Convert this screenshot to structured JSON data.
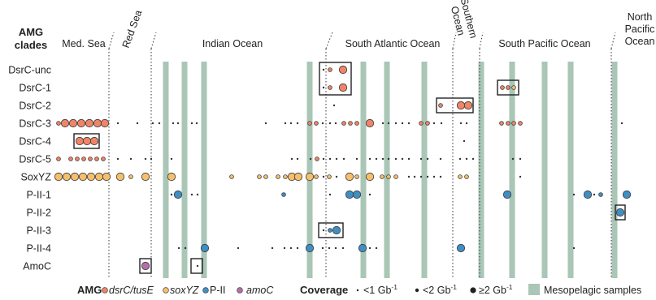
{
  "chart_data": {
    "type": "scatter",
    "ylabel": [
      "AMG",
      "clades"
    ],
    "regions": [
      {
        "name": "Med. Sea",
        "rotated": false
      },
      {
        "name": "Red Sea",
        "rotated": true
      },
      {
        "name": "Indian Ocean",
        "rotated": false
      },
      {
        "name": "South Atlantic Ocean",
        "rotated": false
      },
      {
        "name": "Southern Ocean",
        "rotated": true,
        "lines": [
          "Southern",
          "Ocean"
        ]
      },
      {
        "name": "South Pacific Ocean",
        "rotated": false
      },
      {
        "name": "North Pacific Ocean",
        "rotated": false,
        "lines": [
          "North",
          "Pacific",
          "Ocean"
        ]
      }
    ],
    "categories": [
      "DsrC-unc",
      "DsrC-1",
      "DsrC-2",
      "DsrC-3",
      "DsrC-4",
      "DsrC-5",
      "SoxYZ",
      "P-II-1",
      "P-II-2",
      "P-II-3",
      "P-II-4",
      "AmoC"
    ],
    "amg_groups": [
      {
        "name": "dsrC/tusE",
        "color": "#f08466"
      },
      {
        "name": "soxYZ",
        "color": "#f5bf6c"
      },
      {
        "name": "P-II",
        "color": "#3f8fc4"
      },
      {
        "name": "amoC",
        "color": "#b56fa8"
      }
    ],
    "coverage_classes": [
      {
        "label": "<1 Gb",
        "sup": "-1",
        "size": 1
      },
      {
        "label": "<2 Gb",
        "sup": "-1",
        "size": 2
      },
      {
        "label": "≥2 Gb",
        "sup": "-1",
        "size": 3
      }
    ],
    "mesopelagic_label": "Mesopelagic samples",
    "legend": {
      "amg_title": "AMG",
      "coverage_title": "Coverage"
    },
    "region_boundaries_x": [
      134,
      186,
      401,
      557,
      590,
      752
    ],
    "mesopelagic_x": [
      204,
      227,
      251,
      381,
      447,
      476,
      522,
      592,
      630,
      670,
      702,
      756
    ],
    "points": [
      {
        "row": 0,
        "x": 398,
        "g": 0,
        "s": 1
      },
      {
        "row": 0,
        "x": 406,
        "g": 0,
        "s": 2
      },
      {
        "row": 0,
        "x": 422,
        "g": 0,
        "s": 3
      },
      {
        "row": 1,
        "x": 398,
        "g": 0,
        "s": 1
      },
      {
        "row": 1,
        "x": 406,
        "g": 0,
        "s": 2
      },
      {
        "row": 1,
        "x": 422,
        "g": 0,
        "s": 3
      },
      {
        "row": 1,
        "x": 618,
        "g": 0,
        "s": 2
      },
      {
        "row": 1,
        "x": 625,
        "g": 0,
        "s": 2
      },
      {
        "row": 1,
        "x": 632,
        "g": 1,
        "s": 2
      },
      {
        "row": 2,
        "x": 411,
        "g": 0,
        "s": 1
      },
      {
        "row": 2,
        "x": 542,
        "g": 0,
        "s": 2
      },
      {
        "row": 2,
        "x": 567,
        "g": 0,
        "s": 3
      },
      {
        "row": 2,
        "x": 576,
        "g": 0,
        "s": 3
      },
      {
        "row": 3,
        "x": 72,
        "g": 0,
        "s": 2
      },
      {
        "row": 3,
        "x": 80,
        "g": 0,
        "s": 3
      },
      {
        "row": 3,
        "x": 90,
        "g": 0,
        "s": 3
      },
      {
        "row": 3,
        "x": 100,
        "g": 0,
        "s": 3
      },
      {
        "row": 3,
        "x": 110,
        "g": 0,
        "s": 3
      },
      {
        "row": 3,
        "x": 120,
        "g": 0,
        "s": 3
      },
      {
        "row": 3,
        "x": 129,
        "g": 0,
        "s": 3
      },
      {
        "row": 3,
        "x": 145,
        "g": 0,
        "s": 1
      },
      {
        "row": 3,
        "x": 169,
        "g": 0,
        "s": 1
      },
      {
        "row": 3,
        "x": 188,
        "g": 0,
        "s": 1
      },
      {
        "row": 3,
        "x": 196,
        "g": 0,
        "s": 1
      },
      {
        "row": 3,
        "x": 213,
        "g": 0,
        "s": 1
      },
      {
        "row": 3,
        "x": 219,
        "g": 0,
        "s": 1
      },
      {
        "row": 3,
        "x": 236,
        "g": 0,
        "s": 1
      },
      {
        "row": 3,
        "x": 242,
        "g": 0,
        "s": 1
      },
      {
        "row": 3,
        "x": 327,
        "g": 0,
        "s": 1
      },
      {
        "row": 3,
        "x": 351,
        "g": 0,
        "s": 1
      },
      {
        "row": 3,
        "x": 358,
        "g": 0,
        "s": 1
      },
      {
        "row": 3,
        "x": 366,
        "g": 0,
        "s": 1
      },
      {
        "row": 3,
        "x": 381,
        "g": 0,
        "s": 2
      },
      {
        "row": 3,
        "x": 389,
        "g": 0,
        "s": 2
      },
      {
        "row": 3,
        "x": 397,
        "g": 0,
        "s": 1
      },
      {
        "row": 3,
        "x": 406,
        "g": 0,
        "s": 1
      },
      {
        "row": 3,
        "x": 413,
        "g": 0,
        "s": 1
      },
      {
        "row": 3,
        "x": 423,
        "g": 0,
        "s": 2
      },
      {
        "row": 3,
        "x": 431,
        "g": 0,
        "s": 2
      },
      {
        "row": 3,
        "x": 439,
        "g": 0,
        "s": 2
      },
      {
        "row": 3,
        "x": 455,
        "g": 0,
        "s": 3
      },
      {
        "row": 3,
        "x": 471,
        "g": 0,
        "s": 1
      },
      {
        "row": 3,
        "x": 478,
        "g": 0,
        "s": 1
      },
      {
        "row": 3,
        "x": 487,
        "g": 0,
        "s": 1
      },
      {
        "row": 3,
        "x": 495,
        "g": 0,
        "s": 1
      },
      {
        "row": 3,
        "x": 503,
        "g": 0,
        "s": 1
      },
      {
        "row": 3,
        "x": 518,
        "g": 0,
        "s": 2
      },
      {
        "row": 3,
        "x": 526,
        "g": 0,
        "s": 2
      },
      {
        "row": 3,
        "x": 534,
        "g": 0,
        "s": 1
      },
      {
        "row": 3,
        "x": 543,
        "g": 0,
        "s": 1
      },
      {
        "row": 3,
        "x": 567,
        "g": 0,
        "s": 1
      },
      {
        "row": 3,
        "x": 574,
        "g": 0,
        "s": 1
      },
      {
        "row": 3,
        "x": 617,
        "g": 0,
        "s": 2
      },
      {
        "row": 3,
        "x": 625,
        "g": 0,
        "s": 2
      },
      {
        "row": 3,
        "x": 632,
        "g": 0,
        "s": 2
      },
      {
        "row": 3,
        "x": 640,
        "g": 0,
        "s": 2
      },
      {
        "row": 3,
        "x": 765,
        "g": 0,
        "s": 1
      },
      {
        "row": 4,
        "x": 98,
        "g": 0,
        "s": 3
      },
      {
        "row": 4,
        "x": 107,
        "g": 0,
        "s": 3
      },
      {
        "row": 4,
        "x": 116,
        "g": 0,
        "s": 3
      },
      {
        "row": 4,
        "x": 571,
        "g": 0,
        "s": 1
      },
      {
        "row": 5,
        "x": 72,
        "g": 0,
        "s": 2
      },
      {
        "row": 5,
        "x": 87,
        "g": 0,
        "s": 2
      },
      {
        "row": 5,
        "x": 95,
        "g": 0,
        "s": 2
      },
      {
        "row": 5,
        "x": 103,
        "g": 0,
        "s": 2
      },
      {
        "row": 5,
        "x": 111,
        "g": 0,
        "s": 2
      },
      {
        "row": 5,
        "x": 119,
        "g": 0,
        "s": 2
      },
      {
        "row": 5,
        "x": 127,
        "g": 0,
        "s": 2
      },
      {
        "row": 5,
        "x": 145,
        "g": 0,
        "s": 1
      },
      {
        "row": 5,
        "x": 161,
        "g": 0,
        "s": 1
      },
      {
        "row": 5,
        "x": 179,
        "g": 0,
        "s": 1
      },
      {
        "row": 5,
        "x": 186,
        "g": 0,
        "s": 1
      },
      {
        "row": 5,
        "x": 211,
        "g": 0,
        "s": 1
      },
      {
        "row": 5,
        "x": 359,
        "g": 0,
        "s": 1
      },
      {
        "row": 5,
        "x": 366,
        "g": 0,
        "s": 1
      },
      {
        "row": 5,
        "x": 382,
        "g": 0,
        "s": 1
      },
      {
        "row": 5,
        "x": 390,
        "g": 0,
        "s": 2
      },
      {
        "row": 5,
        "x": 398,
        "g": 0,
        "s": 1
      },
      {
        "row": 5,
        "x": 406,
        "g": 0,
        "s": 1
      },
      {
        "row": 5,
        "x": 414,
        "g": 0,
        "s": 1
      },
      {
        "row": 5,
        "x": 423,
        "g": 0,
        "s": 1
      },
      {
        "row": 5,
        "x": 439,
        "g": 0,
        "s": 1
      },
      {
        "row": 5,
        "x": 455,
        "g": 0,
        "s": 1
      },
      {
        "row": 5,
        "x": 463,
        "g": 0,
        "s": 1
      },
      {
        "row": 5,
        "x": 471,
        "g": 0,
        "s": 1
      },
      {
        "row": 5,
        "x": 478,
        "g": 0,
        "s": 1
      },
      {
        "row": 5,
        "x": 487,
        "g": 0,
        "s": 1
      },
      {
        "row": 5,
        "x": 495,
        "g": 0,
        "s": 1
      },
      {
        "row": 5,
        "x": 503,
        "g": 0,
        "s": 1
      },
      {
        "row": 5,
        "x": 518,
        "g": 0,
        "s": 1
      },
      {
        "row": 5,
        "x": 526,
        "g": 0,
        "s": 1
      },
      {
        "row": 5,
        "x": 542,
        "g": 0,
        "s": 1
      },
      {
        "row": 5,
        "x": 566,
        "g": 0,
        "s": 1
      },
      {
        "row": 5,
        "x": 574,
        "g": 0,
        "s": 1
      },
      {
        "row": 5,
        "x": 582,
        "g": 0,
        "s": 1
      },
      {
        "row": 5,
        "x": 631,
        "g": 0,
        "s": 1
      },
      {
        "row": 5,
        "x": 640,
        "g": 0,
        "s": 1
      },
      {
        "row": 6,
        "x": 72,
        "g": 1,
        "s": 3
      },
      {
        "row": 6,
        "x": 82,
        "g": 1,
        "s": 3
      },
      {
        "row": 6,
        "x": 92,
        "g": 1,
        "s": 3
      },
      {
        "row": 6,
        "x": 102,
        "g": 1,
        "s": 3
      },
      {
        "row": 6,
        "x": 112,
        "g": 1,
        "s": 3
      },
      {
        "row": 6,
        "x": 122,
        "g": 1,
        "s": 3
      },
      {
        "row": 6,
        "x": 131,
        "g": 1,
        "s": 3
      },
      {
        "row": 6,
        "x": 148,
        "g": 1,
        "s": 3
      },
      {
        "row": 6,
        "x": 161,
        "g": 1,
        "s": 2
      },
      {
        "row": 6,
        "x": 179,
        "g": 1,
        "s": 3
      },
      {
        "row": 6,
        "x": 211,
        "g": 1,
        "s": 3
      },
      {
        "row": 6,
        "x": 285,
        "g": 1,
        "s": 2
      },
      {
        "row": 6,
        "x": 319,
        "g": 1,
        "s": 2
      },
      {
        "row": 6,
        "x": 327,
        "g": 1,
        "s": 2
      },
      {
        "row": 6,
        "x": 342,
        "g": 1,
        "s": 2
      },
      {
        "row": 6,
        "x": 351,
        "g": 1,
        "s": 2
      },
      {
        "row": 6,
        "x": 359,
        "g": 1,
        "s": 3
      },
      {
        "row": 6,
        "x": 367,
        "g": 1,
        "s": 3
      },
      {
        "row": 6,
        "x": 381,
        "g": 1,
        "s": 3
      },
      {
        "row": 6,
        "x": 389,
        "g": 1,
        "s": 2
      },
      {
        "row": 6,
        "x": 398,
        "g": 1,
        "s": 1
      },
      {
        "row": 6,
        "x": 405,
        "g": 1,
        "s": 2
      },
      {
        "row": 6,
        "x": 414,
        "g": 1,
        "s": 1
      },
      {
        "row": 6,
        "x": 430,
        "g": 1,
        "s": 3
      },
      {
        "row": 6,
        "x": 439,
        "g": 1,
        "s": 2
      },
      {
        "row": 6,
        "x": 455,
        "g": 1,
        "s": 3
      },
      {
        "row": 6,
        "x": 470,
        "g": 1,
        "s": 2
      },
      {
        "row": 6,
        "x": 478,
        "g": 1,
        "s": 2
      },
      {
        "row": 6,
        "x": 487,
        "g": 1,
        "s": 2
      },
      {
        "row": 6,
        "x": 503,
        "g": 1,
        "s": 1
      },
      {
        "row": 6,
        "x": 510,
        "g": 1,
        "s": 1
      },
      {
        "row": 6,
        "x": 518,
        "g": 1,
        "s": 1
      },
      {
        "row": 6,
        "x": 526,
        "g": 1,
        "s": 1
      },
      {
        "row": 6,
        "x": 534,
        "g": 1,
        "s": 1
      },
      {
        "row": 6,
        "x": 542,
        "g": 1,
        "s": 1
      },
      {
        "row": 6,
        "x": 566,
        "g": 1,
        "s": 2
      },
      {
        "row": 6,
        "x": 574,
        "g": 1,
        "s": 2
      },
      {
        "row": 6,
        "x": 640,
        "g": 1,
        "s": 1
      },
      {
        "row": 7,
        "x": 211,
        "g": 2,
        "s": 1
      },
      {
        "row": 7,
        "x": 219,
        "g": 2,
        "s": 3
      },
      {
        "row": 7,
        "x": 236,
        "g": 2,
        "s": 1
      },
      {
        "row": 7,
        "x": 243,
        "g": 2,
        "s": 1
      },
      {
        "row": 7,
        "x": 349,
        "g": 2,
        "s": 2
      },
      {
        "row": 7,
        "x": 406,
        "g": 2,
        "s": 1
      },
      {
        "row": 7,
        "x": 430,
        "g": 2,
        "s": 3
      },
      {
        "row": 7,
        "x": 439,
        "g": 2,
        "s": 3
      },
      {
        "row": 7,
        "x": 455,
        "g": 2,
        "s": 1
      },
      {
        "row": 7,
        "x": 624,
        "g": 2,
        "s": 3
      },
      {
        "row": 7,
        "x": 706,
        "g": 2,
        "s": 1
      },
      {
        "row": 7,
        "x": 723,
        "g": 2,
        "s": 3
      },
      {
        "row": 7,
        "x": 731,
        "g": 2,
        "s": 1
      },
      {
        "row": 7,
        "x": 739,
        "g": 2,
        "s": 2
      },
      {
        "row": 7,
        "x": 771,
        "g": 2,
        "s": 3
      },
      {
        "row": 8,
        "x": 763,
        "g": 2,
        "s": 3
      },
      {
        "row": 9,
        "x": 398,
        "g": 2,
        "s": 1
      },
      {
        "row": 9,
        "x": 406,
        "g": 2,
        "s": 2
      },
      {
        "row": 9,
        "x": 414,
        "g": 2,
        "s": 3
      },
      {
        "row": 10,
        "x": 220,
        "g": 2,
        "s": 1
      },
      {
        "row": 10,
        "x": 228,
        "g": 2,
        "s": 1
      },
      {
        "row": 10,
        "x": 252,
        "g": 2,
        "s": 3
      },
      {
        "row": 10,
        "x": 293,
        "g": 2,
        "s": 1
      },
      {
        "row": 10,
        "x": 335,
        "g": 2,
        "s": 1
      },
      {
        "row": 10,
        "x": 350,
        "g": 2,
        "s": 1
      },
      {
        "row": 10,
        "x": 358,
        "g": 2,
        "s": 1
      },
      {
        "row": 10,
        "x": 366,
        "g": 2,
        "s": 1
      },
      {
        "row": 10,
        "x": 381,
        "g": 2,
        "s": 3
      },
      {
        "row": 10,
        "x": 397,
        "g": 2,
        "s": 1
      },
      {
        "row": 10,
        "x": 405,
        "g": 2,
        "s": 1
      },
      {
        "row": 10,
        "x": 413,
        "g": 2,
        "s": 1
      },
      {
        "row": 10,
        "x": 422,
        "g": 2,
        "s": 1
      },
      {
        "row": 10,
        "x": 446,
        "g": 2,
        "s": 3
      },
      {
        "row": 10,
        "x": 455,
        "g": 2,
        "s": 1
      },
      {
        "row": 10,
        "x": 463,
        "g": 2,
        "s": 1
      },
      {
        "row": 10,
        "x": 567,
        "g": 2,
        "s": 3
      },
      {
        "row": 10,
        "x": 706,
        "g": 2,
        "s": 1
      },
      {
        "row": 11,
        "x": 179,
        "g": 3,
        "s": 3
      },
      {
        "row": 11,
        "x": 243,
        "g": 3,
        "s": 1
      }
    ],
    "boxes": [
      {
        "row_start": 0,
        "row_end": 1,
        "x1": 393,
        "x2": 432
      },
      {
        "row_start": 1,
        "row_end": 1,
        "x1": 612,
        "x2": 638
      },
      {
        "row_start": 2,
        "row_end": 2,
        "x1": 537,
        "x2": 582
      },
      {
        "row_start": 4,
        "row_end": 4,
        "x1": 91,
        "x2": 122
      },
      {
        "row_start": 8,
        "row_end": 8,
        "x1": 757,
        "x2": 769
      },
      {
        "row_start": 9,
        "row_end": 9,
        "x1": 392,
        "x2": 422
      },
      {
        "row_start": 11,
        "row_end": 11,
        "x1": 172,
        "x2": 186
      },
      {
        "row_start": 11,
        "row_end": 11,
        "x1": 235,
        "x2": 249
      }
    ]
  }
}
